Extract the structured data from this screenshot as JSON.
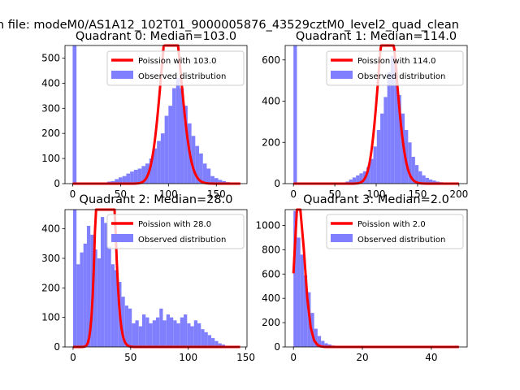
{
  "figure": {
    "suptitle": "n file: modeM0/AS1A12_102T01_9000005876_43529cztM0_level2_quad_clean"
  },
  "colors": {
    "histogram": "#8080ff",
    "poisson": "#ff0000"
  },
  "chart_data": [
    {
      "type": "bar",
      "title": "Quadrant 0: Median=103.0",
      "xlim": [
        -8,
        182
      ],
      "ylim": [
        0,
        550
      ],
      "xticks": [
        0,
        50,
        100,
        150
      ],
      "yticks": [
        0,
        100,
        200,
        300,
        400,
        500
      ],
      "legend_position": "upper right",
      "series": [
        {
          "name": "Observed distribution",
          "bin_width": 4,
          "x": [
            0,
            4,
            8,
            12,
            16,
            20,
            24,
            28,
            32,
            36,
            40,
            44,
            48,
            52,
            56,
            60,
            64,
            68,
            72,
            76,
            80,
            84,
            88,
            92,
            96,
            100,
            104,
            108,
            112,
            116,
            120,
            124,
            128,
            132,
            136,
            140,
            144,
            148,
            152,
            156,
            160,
            164,
            168,
            172
          ],
          "values": [
            550,
            0,
            0,
            0,
            0,
            0,
            0,
            0,
            0,
            8,
            10,
            18,
            25,
            30,
            40,
            48,
            55,
            60,
            70,
            80,
            100,
            140,
            170,
            200,
            270,
            310,
            380,
            420,
            380,
            310,
            240,
            190,
            150,
            120,
            80,
            60,
            30,
            22,
            15,
            10,
            6,
            4,
            3,
            2
          ]
        },
        {
          "name": "Poission with 103.0",
          "mean": 103.0,
          "x_range": [
            0,
            175
          ]
        }
      ]
    },
    {
      "type": "bar",
      "title": "Quadrant 1: Median=114.0",
      "xlim": [
        -10,
        210
      ],
      "ylim": [
        0,
        670
      ],
      "xticks": [
        0,
        50,
        100,
        150,
        200
      ],
      "yticks": [
        0,
        200,
        400,
        600
      ],
      "legend_position": "upper right",
      "series": [
        {
          "name": "Observed distribution",
          "bin_width": 4.2,
          "x": [
            0,
            4.2,
            8.4,
            12.6,
            16.8,
            21,
            25.2,
            29.4,
            33.6,
            37.8,
            42,
            46.2,
            50.4,
            54.6,
            58.8,
            63,
            67.2,
            71.4,
            75.6,
            79.8,
            84,
            88.2,
            92.4,
            96.6,
            100.8,
            105,
            109.2,
            113.4,
            117.6,
            121.8,
            126,
            130.2,
            134.4,
            138.6,
            142.8,
            147,
            151.2,
            155.4,
            159.6,
            163.8,
            168,
            172.2,
            176.4,
            180.6,
            184.8,
            189,
            193.2,
            197.4
          ],
          "values": [
            670,
            0,
            0,
            0,
            0,
            0,
            0,
            0,
            0,
            0,
            0,
            0,
            0,
            0,
            5,
            10,
            20,
            30,
            40,
            50,
            60,
            80,
            120,
            180,
            260,
            340,
            420,
            540,
            620,
            560,
            430,
            340,
            260,
            200,
            130,
            90,
            60,
            40,
            28,
            20,
            15,
            10,
            7,
            5,
            3,
            2,
            1,
            1
          ]
        },
        {
          "name": "Poission with 114.0",
          "mean": 114.0,
          "x_range": [
            0,
            200
          ]
        }
      ]
    },
    {
      "type": "bar",
      "title": "Quadrant 2: Median=28.0",
      "xlim": [
        -7,
        151
      ],
      "ylim": [
        0,
        465
      ],
      "xticks": [
        0,
        50,
        100,
        150
      ],
      "yticks": [
        0,
        100,
        200,
        300,
        400
      ],
      "legend_position": "upper right",
      "series": [
        {
          "name": "Observed distribution",
          "bin_width": 3,
          "x": [
            0,
            3,
            6,
            9,
            12,
            15,
            18,
            21,
            24,
            27,
            30,
            33,
            36,
            39,
            42,
            45,
            48,
            51,
            54,
            57,
            60,
            63,
            66,
            69,
            72,
            75,
            78,
            81,
            84,
            87,
            90,
            93,
            96,
            99,
            102,
            105,
            108,
            111,
            114,
            117,
            120,
            123,
            126,
            129,
            132,
            135,
            138,
            141
          ],
          "values": [
            465,
            280,
            320,
            350,
            410,
            380,
            330,
            300,
            440,
            420,
            340,
            280,
            260,
            220,
            170,
            140,
            130,
            80,
            90,
            70,
            110,
            100,
            80,
            90,
            100,
            130,
            90,
            110,
            100,
            90,
            80,
            100,
            110,
            80,
            70,
            90,
            80,
            60,
            50,
            40,
            30,
            20,
            12,
            8,
            4,
            2,
            1,
            1
          ]
        },
        {
          "name": "Poission with 28.0",
          "mean": 28.0,
          "x_range": [
            0,
            145
          ]
        }
      ]
    },
    {
      "type": "bar",
      "title": "Quadrant 3: Median=2.0",
      "xlim": [
        -2.4,
        50.4
      ],
      "ylim": [
        0,
        1130
      ],
      "xticks": [
        0,
        20,
        40
      ],
      "yticks": [
        0,
        200,
        400,
        600,
        800,
        1000
      ],
      "legend_position": "upper right",
      "series": [
        {
          "name": "Observed distribution",
          "bin_width": 1,
          "x": [
            0,
            1,
            2,
            3,
            4,
            5,
            6,
            7,
            8,
            9,
            10,
            11,
            12,
            13,
            14,
            15,
            16,
            17,
            18,
            19,
            20
          ],
          "values": [
            1120,
            900,
            760,
            590,
            450,
            280,
            150,
            90,
            50,
            30,
            20,
            12,
            8,
            5,
            3,
            2,
            1,
            1,
            0,
            0,
            0
          ]
        },
        {
          "name": "Poission with 2.0",
          "mean": 2.0,
          "x_range": [
            0,
            48
          ]
        }
      ]
    }
  ]
}
